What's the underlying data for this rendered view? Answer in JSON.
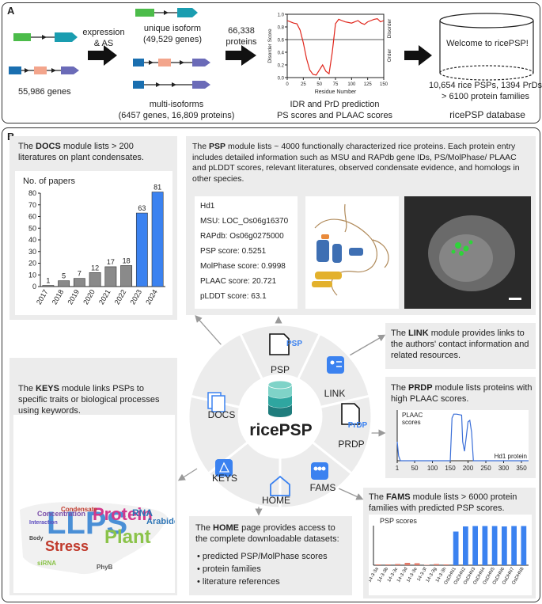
{
  "panel_a": {
    "tag": "A",
    "genes_label": "55,986 genes",
    "expression_label": "expression\n& AS",
    "unique_label": "unique isoform\n(49,529 genes)",
    "multi_label": "multi-isoforms\n(6457 genes, 16,809 proteins)",
    "proteins_label": "66,338\nproteins",
    "plot": {
      "xlabel": "Residue Number",
      "ylabel": "Disorder Score",
      "ticks_x": [
        "0",
        "25",
        "50",
        "75",
        "100",
        "125",
        "150"
      ],
      "ticks_y": [
        "0.0",
        "0.2",
        "0.4",
        "0.6",
        "0.8",
        "1.0"
      ],
      "right_top": "Disorder",
      "right_bottom": "Order"
    },
    "idr_caption": "IDR and PrD prediction\nPS scores and PLAAC scores",
    "db_welcome": "Welcome to ricePSP!",
    "db_stats": "10,654 rice PSPs, 1394 PrDs\n> 6100 protein families",
    "db_name": "ricePSP database"
  },
  "panel_b": {
    "tag": "B",
    "docs": {
      "pre": "The ",
      "name": "DOCS",
      "post": " module lists > 200 literatures on plant condensates."
    },
    "psp": {
      "pre": "The ",
      "name": "PSP",
      "post": " module lists ~ 4000 functionally characterized rice proteins. Each protein entry includes detailed information such as MSU and RAPdb gene IDs, PS/MolPhase/ PLAAC and pLDDT scores, relevant literatures, observed condensate evidence, and homologs in other species.",
      "lines": [
        "Hd1",
        "MSU: LOC_Os06g16370",
        "RAPdb: Os06g0275000",
        "PSP score: 0.5251",
        "MolPhase score: 0.9998",
        "PLAAC score: 20.721",
        "pLDDT score: 63.1"
      ]
    },
    "link": {
      "pre": "The ",
      "name": "LINK",
      "post": " module provides links to the authors' contact information and related resources."
    },
    "keys": {
      "pre": "The ",
      "name": "KEYS",
      "post": " module links PSPs to specific traits or biological processes using keywords."
    },
    "prdp": {
      "pre": "The ",
      "name": "PRDP",
      "post": " module lists proteins with high PLAAC scores.",
      "series_label": "PLAAC\nscores",
      "protein_label": "Hd1 protein",
      "ticks": [
        "1",
        "50",
        "100",
        "150",
        "200",
        "250",
        "300",
        "350"
      ]
    },
    "home": {
      "pre": "The ",
      "name": "HOME",
      "post": " page provides access to the complete downloadable datasets:",
      "bullets": [
        "predicted PSP/MolPhase scores",
        "protein families",
        "literature references"
      ]
    },
    "fams": {
      "pre": "The ",
      "name": "FAMS",
      "post": " module lists > 6000 protein families with predicted PSP scores.",
      "series_label": "PSP scores",
      "categories": [
        "14-3-3a",
        "14-3-3b",
        "14-3-3c",
        "14-3-3d",
        "14-3-3e",
        "14-3-3f",
        "14-3-3g",
        "14-3-3h",
        "OsDHN1",
        "OsDHN2",
        "OsDHN3",
        "OsDHN4",
        "OsDHN5",
        "OsDHN6",
        "OsDHN7",
        "OsDHN8"
      ],
      "values": [
        0.02,
        0.02,
        0.03,
        0.06,
        0.05,
        0.01,
        0.03,
        0.02,
        0.85,
        0.98,
        0.99,
        0.99,
        0.99,
        0.98,
        0.99,
        0.99
      ],
      "colors_low": "#e07b6a",
      "colors_high": "#3b82f0"
    },
    "wheel": {
      "center_label": "ricePSP",
      "segments": [
        "PSP",
        "LINK",
        "PRDP",
        "FAMS",
        "HOME",
        "KEYS",
        "DOCS"
      ],
      "psp_icon_text": "PSP",
      "prdp_icon_text": "PrDP"
    },
    "wordcloud": [
      "LLPS",
      "Protein",
      "Plant",
      "Stress",
      "RNA",
      "Arabidopsis",
      "Concentration",
      "Interaction",
      "Body",
      "siRNA",
      "PhyB",
      "Condensate"
    ]
  },
  "chart_data": [
    {
      "type": "bar",
      "title": "No. of papers",
      "categories": [
        "2017",
        "2018",
        "2019",
        "2020",
        "2021",
        "2022",
        "2023",
        "2024"
      ],
      "values": [
        1,
        5,
        7,
        12,
        17,
        18,
        63,
        81
      ],
      "ylim": [
        0,
        80
      ],
      "yticks": [
        "0",
        "10",
        "20",
        "30",
        "40",
        "50",
        "60",
        "70",
        "80"
      ],
      "colors": [
        "#8a8a8a",
        "#8a8a8a",
        "#8a8a8a",
        "#8a8a8a",
        "#8a8a8a",
        "#8a8a8a",
        "#3b82f0",
        "#3b82f0"
      ]
    },
    {
      "type": "line",
      "xlabel": "Residue Number",
      "ylabel": "Disorder Score",
      "xlim": [
        0,
        150
      ],
      "ylim": [
        0,
        1
      ],
      "threshold": 0.6,
      "x": [
        0,
        5,
        10,
        15,
        20,
        25,
        30,
        35,
        40,
        45,
        50,
        55,
        60,
        65,
        70,
        75,
        80,
        85,
        90,
        95,
        100,
        105,
        110,
        115,
        120,
        125,
        130,
        135,
        140,
        145,
        150
      ],
      "y": [
        0.9,
        0.88,
        0.86,
        0.85,
        0.75,
        0.55,
        0.3,
        0.12,
        0.05,
        0.04,
        0.12,
        0.2,
        0.1,
        0.06,
        0.4,
        0.85,
        0.92,
        0.9,
        0.88,
        0.87,
        0.86,
        0.88,
        0.9,
        0.86,
        0.84,
        0.88,
        0.9,
        0.92,
        0.93,
        0.88,
        0.9
      ],
      "color": "#e0251b"
    }
  ]
}
